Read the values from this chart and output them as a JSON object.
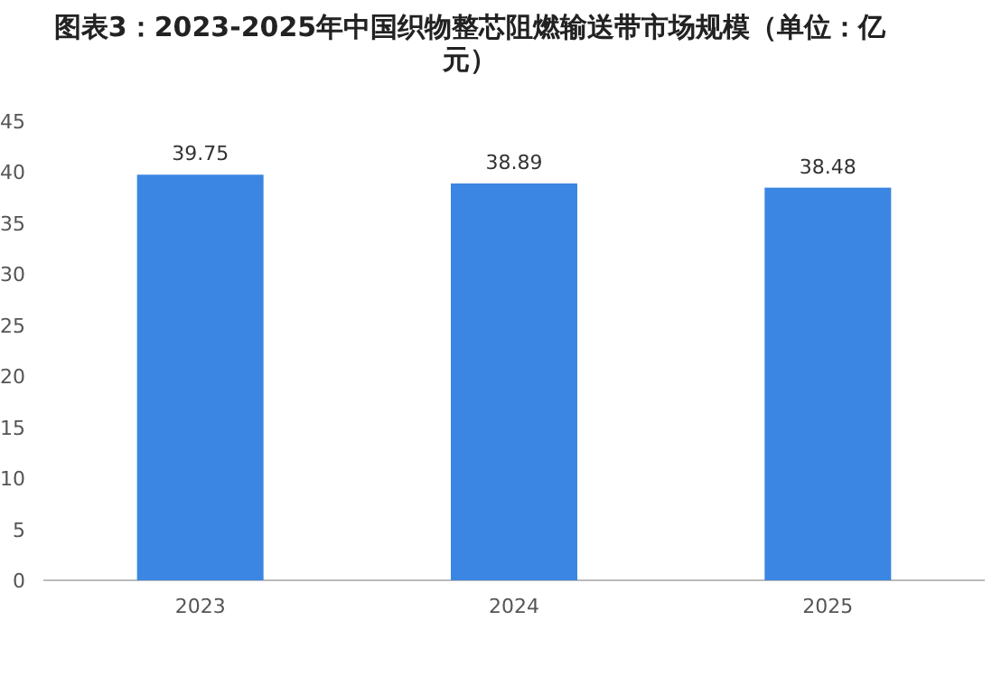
{
  "chart_data": {
    "type": "bar",
    "title": "图表3：2023-2025年中国织物整芯阻燃输送带市场规模（单位：亿元）",
    "categories": [
      "2023",
      "2024",
      "2025"
    ],
    "values": [
      39.75,
      38.89,
      38.48
    ],
    "value_labels": [
      "39.75",
      "38.89",
      "38.48"
    ],
    "color": "#3a86e2",
    "ylim": [
      0,
      45
    ],
    "yticks": [
      0,
      5,
      10,
      15,
      20,
      25,
      30,
      35,
      40,
      45
    ]
  }
}
